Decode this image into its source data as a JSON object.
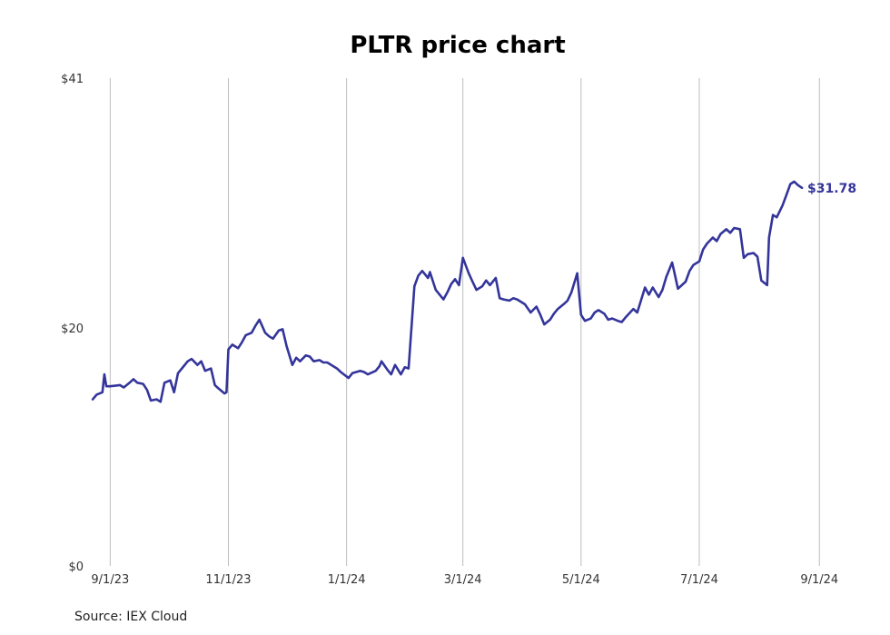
{
  "chart_data": {
    "type": "line",
    "title": "PLTR price chart",
    "xlabel": "",
    "ylabel": "",
    "x_ticks": [
      {
        "date": "2023-09-01",
        "label": "9/1/23"
      },
      {
        "date": "2023-11-01",
        "label": "11/1/23"
      },
      {
        "date": "2024-01-01",
        "label": "1/1/24"
      },
      {
        "date": "2024-03-01",
        "label": "3/1/24"
      },
      {
        "date": "2024-05-01",
        "label": "5/1/24"
      },
      {
        "date": "2024-07-01",
        "label": "7/1/24"
      },
      {
        "date": "2024-09-01",
        "label": "9/1/24"
      }
    ],
    "xlim": [
      "2023-08-22",
      "2024-09-14"
    ],
    "y_ticks": [
      {
        "value": 0,
        "label": "$0"
      },
      {
        "value": 20,
        "label": "$20"
      },
      {
        "value": 41,
        "label": "$41"
      }
    ],
    "ylim": [
      0,
      41
    ],
    "grid": {
      "vertical": true,
      "horizontal": false
    },
    "line_color": "#34359a",
    "end_label": "$31.78",
    "source": "Source: IEX Cloud",
    "series": [
      {
        "points": [
          [
            "2023-08-23",
            14.0
          ],
          [
            "2023-08-25",
            14.4
          ],
          [
            "2023-08-28",
            14.6
          ],
          [
            "2023-08-29",
            16.1
          ],
          [
            "2023-08-30",
            15.1
          ],
          [
            "2023-09-01",
            15.1
          ],
          [
            "2023-09-06",
            15.2
          ],
          [
            "2023-09-08",
            15.0
          ],
          [
            "2023-09-11",
            15.4
          ],
          [
            "2023-09-13",
            15.7
          ],
          [
            "2023-09-15",
            15.4
          ],
          [
            "2023-09-18",
            15.3
          ],
          [
            "2023-09-20",
            14.8
          ],
          [
            "2023-09-22",
            13.9
          ],
          [
            "2023-09-25",
            14.0
          ],
          [
            "2023-09-27",
            13.8
          ],
          [
            "2023-09-29",
            15.4
          ],
          [
            "2023-10-02",
            15.6
          ],
          [
            "2023-10-04",
            14.6
          ],
          [
            "2023-10-06",
            16.2
          ],
          [
            "2023-10-09",
            16.8
          ],
          [
            "2023-10-11",
            17.2
          ],
          [
            "2023-10-13",
            17.4
          ],
          [
            "2023-10-16",
            16.9
          ],
          [
            "2023-10-18",
            17.2
          ],
          [
            "2023-10-20",
            16.4
          ],
          [
            "2023-10-23",
            16.6
          ],
          [
            "2023-10-25",
            15.2
          ],
          [
            "2023-10-27",
            14.9
          ],
          [
            "2023-10-30",
            14.5
          ],
          [
            "2023-10-31",
            14.6
          ],
          [
            "2023-11-01",
            18.2
          ],
          [
            "2023-11-03",
            18.6
          ],
          [
            "2023-11-06",
            18.3
          ],
          [
            "2023-11-08",
            18.8
          ],
          [
            "2023-11-10",
            19.4
          ],
          [
            "2023-11-13",
            19.6
          ],
          [
            "2023-11-15",
            20.2
          ],
          [
            "2023-11-17",
            20.7
          ],
          [
            "2023-11-20",
            19.6
          ],
          [
            "2023-11-22",
            19.3
          ],
          [
            "2023-11-24",
            19.1
          ],
          [
            "2023-11-27",
            19.8
          ],
          [
            "2023-11-29",
            19.9
          ],
          [
            "2023-12-01",
            18.5
          ],
          [
            "2023-12-04",
            16.9
          ],
          [
            "2023-12-06",
            17.5
          ],
          [
            "2023-12-08",
            17.2
          ],
          [
            "2023-12-11",
            17.7
          ],
          [
            "2023-12-13",
            17.6
          ],
          [
            "2023-12-15",
            17.2
          ],
          [
            "2023-12-18",
            17.3
          ],
          [
            "2023-12-20",
            17.1
          ],
          [
            "2023-12-22",
            17.1
          ],
          [
            "2023-12-27",
            16.6
          ],
          [
            "2023-12-29",
            16.3
          ],
          [
            "2024-01-02",
            15.8
          ],
          [
            "2024-01-04",
            16.2
          ],
          [
            "2024-01-08",
            16.4
          ],
          [
            "2024-01-10",
            16.3
          ],
          [
            "2024-01-12",
            16.1
          ],
          [
            "2024-01-16",
            16.4
          ],
          [
            "2024-01-18",
            16.8
          ],
          [
            "2024-01-19",
            17.2
          ],
          [
            "2024-01-22",
            16.5
          ],
          [
            "2024-01-24",
            16.1
          ],
          [
            "2024-01-26",
            16.9
          ],
          [
            "2024-01-29",
            16.1
          ],
          [
            "2024-01-31",
            16.7
          ],
          [
            "2024-02-02",
            16.6
          ],
          [
            "2024-02-05",
            23.5
          ],
          [
            "2024-02-07",
            24.4
          ],
          [
            "2024-02-09",
            24.8
          ],
          [
            "2024-02-12",
            24.2
          ],
          [
            "2024-02-13",
            24.7
          ],
          [
            "2024-02-16",
            23.2
          ],
          [
            "2024-02-20",
            22.4
          ],
          [
            "2024-02-22",
            23.0
          ],
          [
            "2024-02-24",
            23.7
          ],
          [
            "2024-02-26",
            24.1
          ],
          [
            "2024-02-28",
            23.6
          ],
          [
            "2024-03-01",
            25.9
          ],
          [
            "2024-03-04",
            24.6
          ],
          [
            "2024-03-06",
            23.9
          ],
          [
            "2024-03-08",
            23.2
          ],
          [
            "2024-03-11",
            23.5
          ],
          [
            "2024-03-13",
            24.0
          ],
          [
            "2024-03-15",
            23.6
          ],
          [
            "2024-03-18",
            24.2
          ],
          [
            "2024-03-20",
            22.5
          ],
          [
            "2024-03-22",
            22.4
          ],
          [
            "2024-03-25",
            22.3
          ],
          [
            "2024-03-27",
            22.5
          ],
          [
            "2024-03-29",
            22.4
          ],
          [
            "2024-04-02",
            22.0
          ],
          [
            "2024-04-05",
            21.3
          ],
          [
            "2024-04-08",
            21.8
          ],
          [
            "2024-04-10",
            21.1
          ],
          [
            "2024-04-12",
            20.3
          ],
          [
            "2024-04-15",
            20.7
          ],
          [
            "2024-04-17",
            21.2
          ],
          [
            "2024-04-19",
            21.6
          ],
          [
            "2024-04-22",
            22.0
          ],
          [
            "2024-04-24",
            22.3
          ],
          [
            "2024-04-26",
            23.0
          ],
          [
            "2024-04-29",
            24.6
          ],
          [
            "2024-05-01",
            21.1
          ],
          [
            "2024-05-03",
            20.6
          ],
          [
            "2024-05-06",
            20.8
          ],
          [
            "2024-05-08",
            21.3
          ],
          [
            "2024-05-10",
            21.5
          ],
          [
            "2024-05-13",
            21.2
          ],
          [
            "2024-05-15",
            20.7
          ],
          [
            "2024-05-17",
            20.8
          ],
          [
            "2024-05-20",
            20.6
          ],
          [
            "2024-05-22",
            20.5
          ],
          [
            "2024-05-24",
            20.9
          ],
          [
            "2024-05-28",
            21.6
          ],
          [
            "2024-05-30",
            21.3
          ],
          [
            "2024-06-03",
            23.4
          ],
          [
            "2024-06-05",
            22.8
          ],
          [
            "2024-06-07",
            23.4
          ],
          [
            "2024-06-10",
            22.6
          ],
          [
            "2024-06-12",
            23.2
          ],
          [
            "2024-06-14",
            24.3
          ],
          [
            "2024-06-17",
            25.5
          ],
          [
            "2024-06-18",
            24.8
          ],
          [
            "2024-06-20",
            23.3
          ],
          [
            "2024-06-24",
            23.9
          ],
          [
            "2024-06-26",
            24.8
          ],
          [
            "2024-06-28",
            25.3
          ],
          [
            "2024-07-01",
            25.6
          ],
          [
            "2024-07-03",
            26.6
          ],
          [
            "2024-07-05",
            27.1
          ],
          [
            "2024-07-08",
            27.6
          ],
          [
            "2024-07-10",
            27.3
          ],
          [
            "2024-07-12",
            27.9
          ],
          [
            "2024-07-15",
            28.3
          ],
          [
            "2024-07-17",
            28.0
          ],
          [
            "2024-07-19",
            28.4
          ],
          [
            "2024-07-22",
            28.3
          ],
          [
            "2024-07-24",
            25.9
          ],
          [
            "2024-07-26",
            26.2
          ],
          [
            "2024-07-29",
            26.3
          ],
          [
            "2024-07-31",
            26.0
          ],
          [
            "2024-08-02",
            24.0
          ],
          [
            "2024-08-05",
            23.6
          ],
          [
            "2024-08-06",
            27.6
          ],
          [
            "2024-08-08",
            29.5
          ],
          [
            "2024-08-10",
            29.3
          ],
          [
            "2024-08-13",
            30.3
          ],
          [
            "2024-08-15",
            31.2
          ],
          [
            "2024-08-17",
            32.1
          ],
          [
            "2024-08-19",
            32.3
          ],
          [
            "2024-08-21",
            32.0
          ],
          [
            "2024-08-23",
            31.78
          ]
        ]
      }
    ]
  }
}
